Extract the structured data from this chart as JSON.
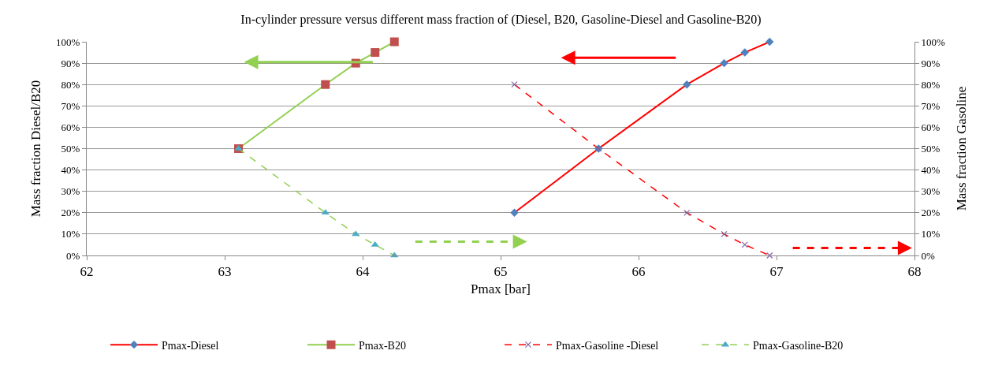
{
  "chart_data": {
    "type": "line",
    "title": "In-cylinder pressure versus different mass fraction of (Diesel, B20, Gasoline-Diesel and Gasoline-B20)",
    "xlabel": "Pmax [bar]",
    "ylabel": "Mass fraction Diesel/B20",
    "y2label": "Mass fraction Gasoline",
    "xlim": [
      62,
      68
    ],
    "xticks": [
      62,
      63,
      64,
      65,
      66,
      67,
      68
    ],
    "ylim": [
      0,
      100
    ],
    "yticks": [
      {
        "value": 0,
        "label": "0%"
      },
      {
        "value": 10,
        "label": "10%"
      },
      {
        "value": 20,
        "label": "20%"
      },
      {
        "value": 30,
        "label": "30%"
      },
      {
        "value": 40,
        "label": "40%"
      },
      {
        "value": 50,
        "label": "50%"
      },
      {
        "value": 60,
        "label": "60%"
      },
      {
        "value": 70,
        "label": "70%"
      },
      {
        "value": 80,
        "label": "80%"
      },
      {
        "value": 90,
        "label": "90%"
      },
      {
        "value": 100,
        "label": "100%"
      }
    ],
    "y2lim": [
      0,
      100
    ],
    "y2ticks": [
      {
        "value": 0,
        "label": "0%"
      },
      {
        "value": 10,
        "label": "10%"
      },
      {
        "value": 20,
        "label": "20%"
      },
      {
        "value": 30,
        "label": "30%"
      },
      {
        "value": 40,
        "label": "40%"
      },
      {
        "value": 50,
        "label": "50%"
      },
      {
        "value": 60,
        "label": "60%"
      },
      {
        "value": 70,
        "label": "70%"
      },
      {
        "value": 80,
        "label": "80%"
      },
      {
        "value": 90,
        "label": "90%"
      },
      {
        "value": 100,
        "label": "100%"
      }
    ],
    "grid": "y",
    "legend": "bottom",
    "series": [
      {
        "name": "Pmax-Diesel",
        "color": "#ff0000",
        "marker": "diamond",
        "line_style": "solid",
        "x": [
          65.1,
          65.71,
          66.35,
          66.62,
          66.77,
          66.95
        ],
        "values": [
          20,
          50,
          80,
          90,
          95,
          100
        ]
      },
      {
        "name": "Pmax-B20",
        "color": "#92d050",
        "marker": "square",
        "line_style": "solid",
        "x": [
          63.1,
          63.73,
          63.95,
          64.09,
          64.23
        ],
        "values": [
          50,
          80,
          90,
          95,
          100
        ]
      },
      {
        "name": "Pmax-Gasoline -Diesel",
        "color": "#ff0000",
        "marker": "cross",
        "line_style": "dashed",
        "axis": "y2",
        "x": [
          65.1,
          65.71,
          66.35,
          66.62,
          66.77,
          66.95
        ],
        "values": [
          80,
          50,
          20,
          10,
          5,
          0
        ]
      },
      {
        "name": "Pmax-Gasoline-B20",
        "color": "#92d050",
        "marker": "triangle",
        "line_style": "dashed",
        "axis": "y2",
        "x": [
          63.1,
          63.73,
          63.95,
          64.09,
          64.23
        ],
        "values": [
          50,
          20,
          10,
          5,
          0
        ]
      }
    ]
  }
}
